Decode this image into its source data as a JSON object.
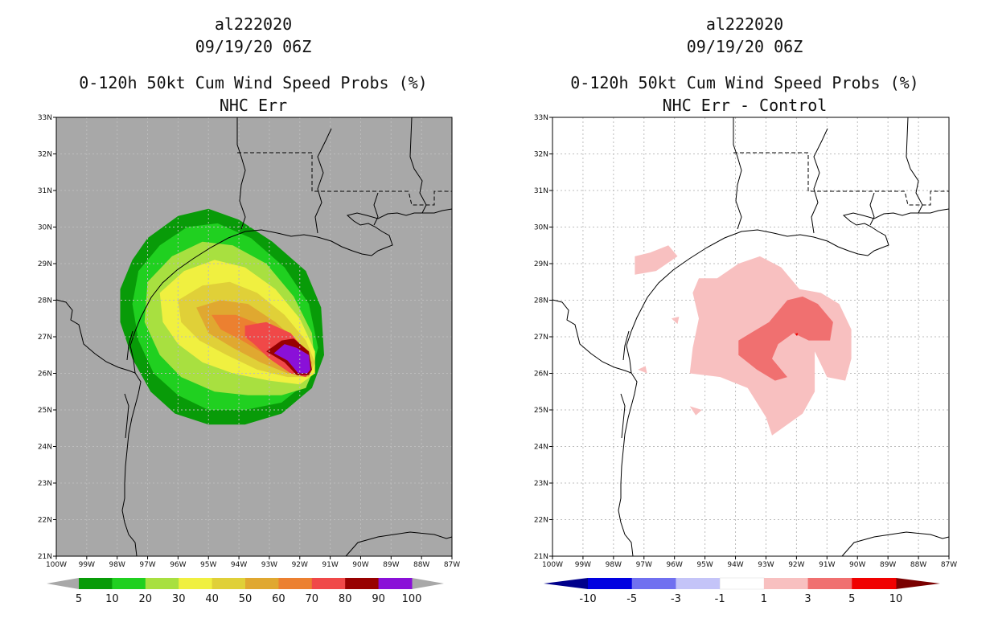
{
  "chart_data": [
    {
      "type": "heatmap",
      "id": "left",
      "title_lines": [
        "al222020",
        "09/19/20 06Z",
        "0-120h 50kt Cum Wind Speed Probs (%)",
        "NHC Err"
      ],
      "xlim": [
        -100,
        -87
      ],
      "ylim": [
        21,
        33
      ],
      "x_ticks": [
        -100,
        -99,
        -98,
        -97,
        -96,
        -95,
        -94,
        -93,
        -92,
        -91,
        -90,
        -89,
        -88,
        -87
      ],
      "x_tick_labels": [
        "100W",
        "99W",
        "98W",
        "97W",
        "96W",
        "95W",
        "94W",
        "93W",
        "92W",
        "91W",
        "90W",
        "89W",
        "88W",
        "87W"
      ],
      "y_ticks": [
        21,
        22,
        23,
        24,
        25,
        26,
        27,
        28,
        29,
        30,
        31,
        32,
        33
      ],
      "y_tick_labels": [
        "21N",
        "22N",
        "23N",
        "24N",
        "25N",
        "26N",
        "27N",
        "28N",
        "29N",
        "30N",
        "31N",
        "32N",
        "33N"
      ],
      "background": "#a8a8a8",
      "grid": true,
      "colorbar": {
        "labels": [
          "5",
          "10",
          "20",
          "30",
          "40",
          "50",
          "60",
          "70",
          "80",
          "90",
          "100"
        ],
        "colors": [
          "#089b08",
          "#20d020",
          "#a8e040",
          "#f0f040",
          "#e0d038",
          "#e0a830",
          "#ec8030",
          "#f04848",
          "#980000",
          "#8a10d8"
        ],
        "end_color": "#a8a8a8"
      },
      "contours": [
        {
          "level": 5,
          "color": "#089b08",
          "points": [
            [
              -97.5,
              29.1
            ],
            [
              -97,
              29.7
            ],
            [
              -96,
              30.3
            ],
            [
              -95,
              30.5
            ],
            [
              -94,
              30.2
            ],
            [
              -92.9,
              29.6
            ],
            [
              -91.8,
              28.8
            ],
            [
              -91.3,
              27.8
            ],
            [
              -91.2,
              26.5
            ],
            [
              -91.6,
              25.6
            ],
            [
              -92.6,
              24.9
            ],
            [
              -93.8,
              24.6
            ],
            [
              -95,
              24.6
            ],
            [
              -96.1,
              24.9
            ],
            [
              -96.9,
              25.5
            ],
            [
              -97.5,
              26.4
            ],
            [
              -97.9,
              27.4
            ],
            [
              -97.9,
              28.3
            ]
          ]
        },
        {
          "level": 10,
          "color": "#20d020",
          "points": [
            [
              -97.3,
              28.8
            ],
            [
              -96.6,
              29.5
            ],
            [
              -95.7,
              30
            ],
            [
              -94.7,
              30.1
            ],
            [
              -93.6,
              29.7
            ],
            [
              -92.5,
              28.9
            ],
            [
              -91.7,
              27.9
            ],
            [
              -91.4,
              26.7
            ],
            [
              -91.7,
              25.8
            ],
            [
              -92.6,
              25.2
            ],
            [
              -93.8,
              25
            ],
            [
              -95,
              25
            ],
            [
              -96,
              25.4
            ],
            [
              -96.8,
              26
            ],
            [
              -97.3,
              26.9
            ],
            [
              -97.5,
              27.9
            ]
          ]
        },
        {
          "level": 20,
          "color": "#a8e040",
          "points": [
            [
              -97,
              28.5
            ],
            [
              -96.2,
              29.2
            ],
            [
              -95.2,
              29.6
            ],
            [
              -94.2,
              29.5
            ],
            [
              -93.1,
              29
            ],
            [
              -92.2,
              28.1
            ],
            [
              -91.6,
              27.1
            ],
            [
              -91.5,
              26.2
            ],
            [
              -91.8,
              25.6
            ],
            [
              -92.6,
              25.4
            ],
            [
              -93.7,
              25.4
            ],
            [
              -94.8,
              25.5
            ],
            [
              -95.9,
              25.9
            ],
            [
              -96.6,
              26.5
            ],
            [
              -97.1,
              27.4
            ]
          ]
        },
        {
          "level": 30,
          "color": "#f0f040",
          "points": [
            [
              -96.6,
              28.2
            ],
            [
              -95.8,
              28.8
            ],
            [
              -94.8,
              29.1
            ],
            [
              -93.8,
              28.9
            ],
            [
              -92.8,
              28.3
            ],
            [
              -92,
              27.5
            ],
            [
              -91.5,
              26.6
            ],
            [
              -91.5,
              26
            ],
            [
              -92,
              25.7
            ],
            [
              -93,
              25.8
            ],
            [
              -94.2,
              26
            ],
            [
              -95.2,
              26.3
            ],
            [
              -96,
              26.8
            ],
            [
              -96.5,
              27.4
            ]
          ]
        },
        {
          "level": 40,
          "color": "#e0d038",
          "points": [
            [
              -96,
              28
            ],
            [
              -95.2,
              28.4
            ],
            [
              -94.3,
              28.5
            ],
            [
              -93.4,
              28.2
            ],
            [
              -92.5,
              27.6
            ],
            [
              -91.8,
              26.9
            ],
            [
              -91.5,
              26.3
            ],
            [
              -91.7,
              25.9
            ],
            [
              -92.4,
              25.9
            ],
            [
              -93.4,
              26.1
            ],
            [
              -94.4,
              26.5
            ],
            [
              -95.3,
              26.9
            ],
            [
              -95.9,
              27.4
            ]
          ]
        },
        {
          "level": 50,
          "color": "#e0a830",
          "points": [
            [
              -95.4,
              27.8
            ],
            [
              -94.6,
              28
            ],
            [
              -93.7,
              27.9
            ],
            [
              -92.8,
              27.4
            ],
            [
              -92,
              26.8
            ],
            [
              -91.6,
              26.3
            ],
            [
              -91.7,
              26
            ],
            [
              -92.4,
              26
            ],
            [
              -93.3,
              26.3
            ],
            [
              -94.2,
              26.7
            ],
            [
              -95,
              27.1
            ]
          ]
        },
        {
          "level": 60,
          "color": "#ec8030",
          "points": [
            [
              -94.9,
              27.6
            ],
            [
              -94.1,
              27.6
            ],
            [
              -93.2,
              27.3
            ],
            [
              -92.4,
              26.8
            ],
            [
              -91.8,
              26.3
            ],
            [
              -91.7,
              26
            ],
            [
              -92.3,
              26.1
            ],
            [
              -93.1,
              26.5
            ],
            [
              -93.9,
              26.9
            ],
            [
              -94.6,
              27.2
            ]
          ]
        },
        {
          "level": 70,
          "color": "#f04848",
          "points": [
            [
              -93.8,
              27.3
            ],
            [
              -93.1,
              27.4
            ],
            [
              -92.3,
              27.1
            ],
            [
              -91.8,
              26.6
            ],
            [
              -91.6,
              26.1
            ],
            [
              -91.8,
              25.9
            ],
            [
              -92.3,
              26
            ],
            [
              -93,
              26.4
            ],
            [
              -93.5,
              26.8
            ],
            [
              -93.8,
              27
            ]
          ]
        },
        {
          "level": 80,
          "color": "#980000",
          "points": [
            [
              -92.6,
              26.9
            ],
            [
              -92.2,
              26.95
            ],
            [
              -91.7,
              26.6
            ],
            [
              -91.6,
              26.1
            ],
            [
              -91.7,
              25.95
            ],
            [
              -92.1,
              25.95
            ],
            [
              -92.5,
              26.3
            ],
            [
              -93.1,
              26.6
            ]
          ]
        },
        {
          "level": 90,
          "color": "#8a10d8",
          "points": [
            [
              -92.5,
              26.8
            ],
            [
              -92.1,
              26.7
            ],
            [
              -91.7,
              26.5
            ],
            [
              -91.65,
              26.1
            ],
            [
              -91.75,
              26
            ],
            [
              -92.05,
              26
            ],
            [
              -92.4,
              26.35
            ],
            [
              -92.85,
              26.55
            ]
          ]
        }
      ]
    },
    {
      "type": "heatmap",
      "id": "right",
      "title_lines": [
        "al222020",
        "09/19/20 06Z",
        "0-120h 50kt Cum Wind Speed Probs (%)",
        "NHC Err - Control"
      ],
      "xlim": [
        -100,
        -87
      ],
      "ylim": [
        21,
        33
      ],
      "x_ticks": [
        -100,
        -99,
        -98,
        -97,
        -96,
        -95,
        -94,
        -93,
        -92,
        -91,
        -90,
        -89,
        -88,
        -87
      ],
      "x_tick_labels": [
        "100W",
        "99W",
        "98W",
        "97W",
        "96W",
        "95W",
        "94W",
        "93W",
        "92W",
        "91W",
        "90W",
        "89W",
        "88W",
        "87W"
      ],
      "y_ticks": [
        21,
        22,
        23,
        24,
        25,
        26,
        27,
        28,
        29,
        30,
        31,
        32,
        33
      ],
      "y_tick_labels": [
        "21N",
        "22N",
        "23N",
        "24N",
        "25N",
        "26N",
        "27N",
        "28N",
        "29N",
        "30N",
        "31N",
        "32N",
        "33N"
      ],
      "background": "#ffffff",
      "grid": true,
      "colorbar": {
        "labels": [
          "-10",
          "-5",
          "-3",
          "-1",
          "1",
          "3",
          "5",
          "10"
        ],
        "colors": [
          "#0000e0",
          "#7070f0",
          "#c4c4f8",
          "#ffffff",
          "#f8c0c0",
          "#f07070",
          "#f00000"
        ],
        "left_end_color": "#00008b",
        "right_end_color": "#7a0000"
      },
      "contours": [
        {
          "level": 1,
          "color": "#f8c0c0",
          "points": [
            [
              -94.6,
              28.6
            ],
            [
              -93.9,
              29
            ],
            [
              -93.2,
              29.2
            ],
            [
              -92.5,
              28.9
            ],
            [
              -91.9,
              28.3
            ],
            [
              -91.2,
              28.2
            ],
            [
              -90.6,
              27.9
            ],
            [
              -90.2,
              27.2
            ],
            [
              -90.2,
              26.4
            ],
            [
              -90.4,
              25.8
            ],
            [
              -91,
              25.9
            ],
            [
              -91.4,
              26.6
            ],
            [
              -91.4,
              25.5
            ],
            [
              -91.8,
              24.9
            ],
            [
              -92.8,
              24.3
            ],
            [
              -93,
              24.8
            ],
            [
              -93.6,
              25.6
            ],
            [
              -94.5,
              25.9
            ],
            [
              -95.5,
              26
            ],
            [
              -95.4,
              26.7
            ],
            [
              -95.2,
              27.5
            ],
            [
              -95.4,
              28.2
            ],
            [
              -95.2,
              28.6
            ]
          ]
        },
        {
          "level": 1,
          "color": "#f8c0c0",
          "points": [
            [
              -97.3,
              28.7
            ],
            [
              -96.6,
              28.8
            ],
            [
              -95.9,
              29.2
            ],
            [
              -96.2,
              29.5
            ],
            [
              -96.8,
              29.3
            ],
            [
              -97.3,
              29.2
            ]
          ]
        },
        {
          "level": 1,
          "color": "#f8c0c0",
          "points": [
            [
              -95.5,
              25.1
            ],
            [
              -95.3,
              24.85
            ],
            [
              -95.1,
              25
            ]
          ]
        },
        {
          "level": 1,
          "color": "#f8c0c0",
          "points": [
            [
              -96.1,
              27.5
            ],
            [
              -95.9,
              27.35
            ],
            [
              -95.85,
              27.55
            ]
          ]
        },
        {
          "level": 1,
          "color": "#f8c0c0",
          "points": [
            [
              -97.2,
              26.1
            ],
            [
              -96.9,
              26
            ],
            [
              -96.95,
              26.2
            ]
          ]
        },
        {
          "level": 3,
          "color": "#f07070",
          "points": [
            [
              -93.5,
              27.1
            ],
            [
              -92.9,
              27.4
            ],
            [
              -92.3,
              28
            ],
            [
              -91.8,
              28.1
            ],
            [
              -91.3,
              27.9
            ],
            [
              -90.8,
              27.4
            ],
            [
              -90.9,
              26.9
            ],
            [
              -91.6,
              26.9
            ],
            [
              -92.1,
              27.1
            ],
            [
              -92.6,
              26.8
            ],
            [
              -92.8,
              26.4
            ],
            [
              -92.3,
              25.9
            ],
            [
              -92.7,
              25.8
            ],
            [
              -93.3,
              26.1
            ],
            [
              -93.9,
              26.5
            ],
            [
              -93.9,
              26.9
            ]
          ]
        },
        {
          "level": 5,
          "color": "#f00000",
          "points": [
            [
              -92.05,
              27.08
            ],
            [
              -91.95,
              27.1
            ],
            [
              -91.98,
              27.02
            ]
          ]
        }
      ]
    }
  ]
}
